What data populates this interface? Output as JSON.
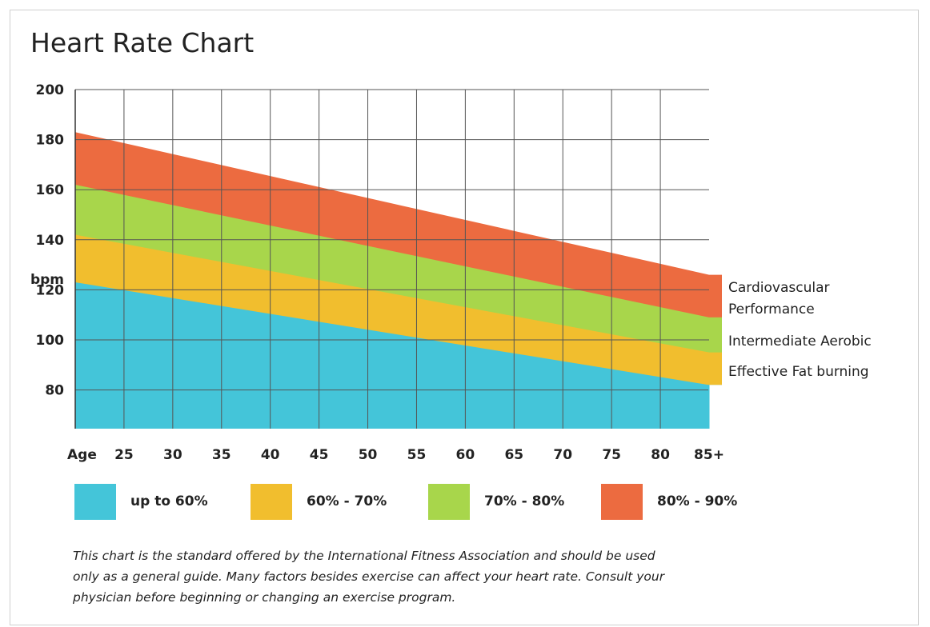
{
  "chart_data": {
    "type": "area",
    "title": "Heart Rate Chart",
    "y_unit_label": "bpm",
    "x_prefix_label": "Age",
    "y_ticks": [
      200,
      180,
      160,
      140,
      120,
      100,
      80
    ],
    "ylim": [
      62,
      200
    ],
    "x_tick_labels": [
      "25",
      "30",
      "35",
      "40",
      "45",
      "50",
      "55",
      "60",
      "65",
      "70",
      "75",
      "80",
      "85+"
    ],
    "age_range": [
      20,
      85
    ],
    "grid": true,
    "series": [
      {
        "name": "up to 60%",
        "color": "#44c5d9",
        "start": [
          20,
          123
        ],
        "end": [
          85,
          82
        ]
      },
      {
        "name": "60% - 70%",
        "color": "#f1be2e",
        "start": [
          20,
          142
        ],
        "end": [
          85,
          95
        ]
      },
      {
        "name": "70% - 80%",
        "color": "#a8d64b",
        "start": [
          20,
          162
        ],
        "end": [
          85,
          109
        ]
      },
      {
        "name": "80% - 90%",
        "color": "#ec6b40",
        "start": [
          20,
          183
        ],
        "end": [
          85,
          126
        ]
      }
    ],
    "zone_labels": [
      {
        "lines": [
          "Cardiovascular",
          "Performance"
        ],
        "band": 3
      },
      {
        "lines": [
          "Intermediate Aerobic"
        ],
        "band": 2
      },
      {
        "lines": [
          "Effective Fat burning"
        ],
        "band": 1
      }
    ]
  },
  "legend": [
    {
      "label": "up to 60%",
      "color": "#44c5d9"
    },
    {
      "label": "60% - 70%",
      "color": "#f1be2e"
    },
    {
      "label": "70% - 80%",
      "color": "#a8d64b"
    },
    {
      "label": "80% - 90%",
      "color": "#ec6b40"
    }
  ],
  "footnote": [
    "This chart is the standard offered by the International Fitness Association and should be used",
    "only as a general guide. Many factors besides exercise can affect your heart rate. Consult your",
    "physician before beginning or changing an exercise program."
  ]
}
